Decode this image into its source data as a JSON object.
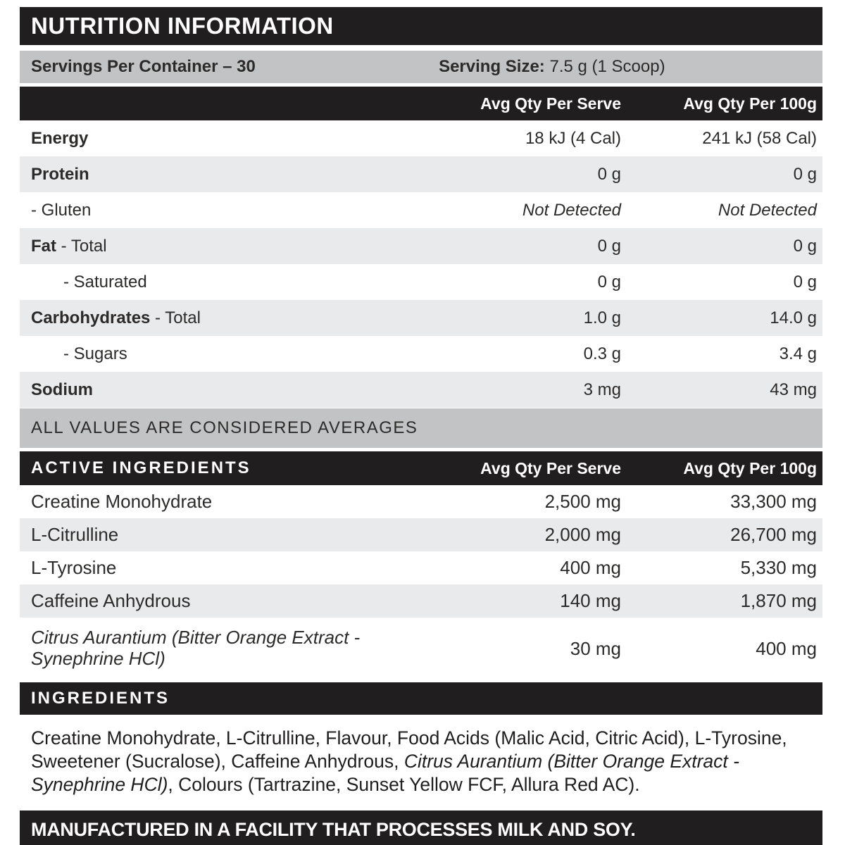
{
  "title": "NUTRITION INFORMATION",
  "servings": {
    "per_container": "Servings Per Container – 30",
    "serving_size_label": "Serving Size:",
    "serving_size_value": " 7.5 g (1 Scoop)"
  },
  "columns": {
    "serve": "Avg Qty Per Serve",
    "per100": "Avg Qty Per 100g"
  },
  "nutrition_rows": [
    {
      "label_bold": "Energy",
      "label_rest": "",
      "serve": "18 kJ (4 Cal)",
      "per100": "241 kJ (58 Cal)",
      "shade": false,
      "indent": false,
      "values_italic": false
    },
    {
      "label_bold": "Protein",
      "label_rest": "",
      "serve": "0 g",
      "per100": "0 g",
      "shade": true,
      "indent": false,
      "values_italic": false
    },
    {
      "label_bold": "",
      "label_rest": "- Gluten",
      "serve": "Not Detected",
      "per100": "Not Detected",
      "shade": false,
      "indent": false,
      "values_italic": true
    },
    {
      "label_bold": "Fat",
      "label_rest": " - Total",
      "serve": "0 g",
      "per100": "0 g",
      "shade": true,
      "indent": false,
      "values_italic": false
    },
    {
      "label_bold": "",
      "label_rest": "- Saturated",
      "serve": "0 g",
      "per100": "0 g",
      "shade": false,
      "indent": true,
      "values_italic": false
    },
    {
      "label_bold": "Carbohydrates",
      "label_rest": " - Total",
      "serve": "1.0 g",
      "per100": "14.0 g",
      "shade": true,
      "indent": false,
      "values_italic": false
    },
    {
      "label_bold": "",
      "label_rest": "- Sugars",
      "serve": "0.3 g",
      "per100": "3.4 g",
      "shade": false,
      "indent": true,
      "values_italic": false
    },
    {
      "label_bold": "Sodium",
      "label_rest": "",
      "serve": "3 mg",
      "per100": "43 mg",
      "shade": true,
      "indent": false,
      "values_italic": false
    }
  ],
  "averages_note": "ALL VALUES ARE CONSIDERED AVERAGES",
  "active_ingredients": {
    "heading": "ACTIVE INGREDIENTS",
    "rows": [
      {
        "label": "Creatine Monohydrate",
        "serve": "2,500 mg",
        "per100": "33,300 mg",
        "shade": false,
        "italic": false,
        "tall": false
      },
      {
        "label": "L-Citrulline",
        "serve": "2,000 mg",
        "per100": "26,700 mg",
        "shade": true,
        "italic": false,
        "tall": false
      },
      {
        "label": "L-Tyrosine",
        "serve": "400 mg",
        "per100": "5,330 mg",
        "shade": false,
        "italic": false,
        "tall": false
      },
      {
        "label": "Caffeine Anhydrous",
        "serve": "140 mg",
        "per100": "1,870 mg",
        "shade": true,
        "italic": false,
        "tall": false
      },
      {
        "label": "Citrus Aurantium (Bitter Orange Extract - Synephrine HCl)",
        "serve": "30 mg",
        "per100": "400 mg",
        "shade": false,
        "italic": true,
        "tall": true
      }
    ]
  },
  "ingredients": {
    "heading": "INGREDIENTS",
    "text_before": "Creatine Monohydrate, L-Citrulline, Flavour, Food Acids (Malic Acid, Citric Acid), L-Tyrosine, Sweetener (Sucralose), Caffeine Anhydrous, ",
    "text_italic": "Citrus Aurantium (Bitter Orange Extract - Synephrine HCl)",
    "text_after": ", Colours (Tartrazine, Sunset Yellow FCF, Allura Red AC)."
  },
  "allergen_note": "MANUFACTURED IN A FACILITY THAT PROCESSES MILK AND SOY.",
  "colors": {
    "bar_black": "#211e1f",
    "bar_gray": "#c2c3c5",
    "row_shade": "#e9eaec",
    "text": "#2c2b2a"
  }
}
